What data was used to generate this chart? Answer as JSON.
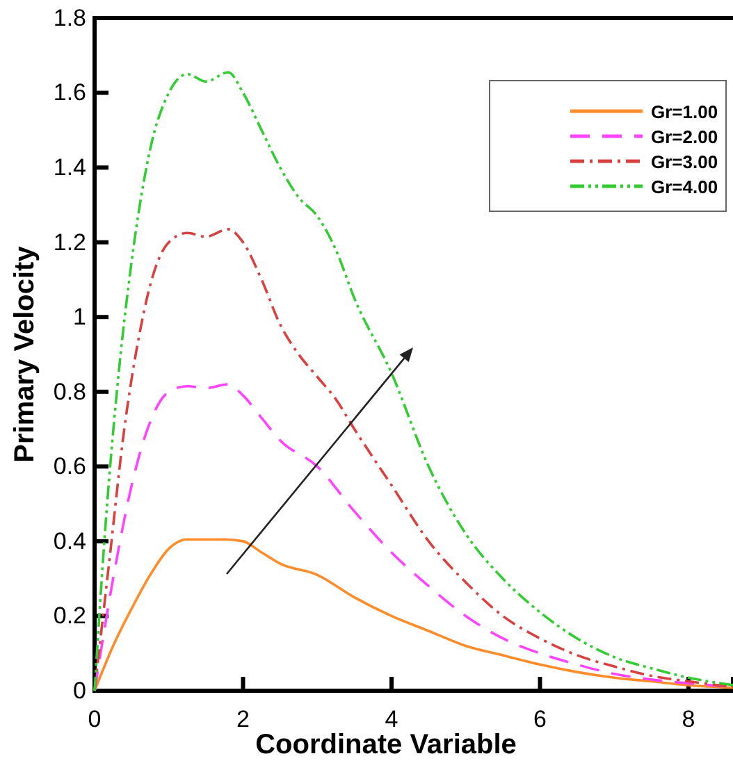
{
  "chart_data": {
    "type": "line",
    "xlabel": "Coordinate Variable",
    "ylabel": "Primary Velocity",
    "xlim": [
      0,
      8.6
    ],
    "ylim": [
      0,
      1.8
    ],
    "xticks": [
      0,
      2,
      4,
      6,
      8
    ],
    "yticks": [
      0,
      {
        "value": 0.2,
        "label": "0.2"
      },
      {
        "value": 0.4,
        "label": "0.4"
      },
      {
        "value": 0.6,
        "label": "0.6"
      },
      {
        "value": 0.8,
        "label": "0.8"
      },
      1,
      {
        "value": 1.2,
        "label": "1.2"
      },
      {
        "value": 1.4,
        "label": "1.4"
      },
      {
        "value": 1.6,
        "label": "1.6"
      },
      {
        "value": 1.8,
        "label": "1.8"
      }
    ],
    "legend": "top right",
    "grid": false,
    "marker": "none",
    "series": [
      {
        "name": "Gr=1.00",
        "color": "#ff8c2a",
        "line_style": "solid",
        "x": [
          0,
          0.25,
          0.5,
          0.75,
          1,
          1.25,
          1.5,
          1.75,
          2,
          2.25,
          2.5,
          3,
          3.5,
          4,
          4.5,
          5,
          5.5,
          6,
          6.5,
          7,
          7.5,
          8,
          8.6
        ],
        "values": [
          0,
          0.12,
          0.22,
          0.31,
          0.38,
          0.405,
          0.405,
          0.405,
          0.4,
          0.37,
          0.34,
          0.31,
          0.25,
          0.2,
          0.16,
          0.12,
          0.095,
          0.07,
          0.05,
          0.035,
          0.025,
          0.015,
          0.008
        ]
      },
      {
        "name": "Gr=2.00",
        "color": "#ff44ff",
        "line_style": "dashed",
        "x": [
          0,
          0.25,
          0.5,
          0.75,
          1,
          1.25,
          1.5,
          1.8,
          2,
          2.25,
          2.5,
          3,
          3.5,
          4,
          4.5,
          5,
          5.5,
          6,
          6.5,
          7,
          7.5,
          8,
          8.6
        ],
        "values": [
          0,
          0.3,
          0.55,
          0.72,
          0.8,
          0.815,
          0.81,
          0.82,
          0.79,
          0.73,
          0.67,
          0.6,
          0.48,
          0.37,
          0.28,
          0.2,
          0.14,
          0.1,
          0.07,
          0.045,
          0.03,
          0.02,
          0.01
        ]
      },
      {
        "name": "Gr=3.00",
        "color": "#d94040",
        "line_style": "dashdot",
        "x": [
          0,
          0.2,
          0.4,
          0.6,
          0.8,
          1,
          1.25,
          1.5,
          1.8,
          2,
          2.25,
          2.5,
          2.75,
          3,
          3.25,
          3.5,
          4,
          4.5,
          5,
          5.5,
          6,
          6.5,
          7,
          7.5,
          8,
          8.6
        ],
        "values": [
          0,
          0.35,
          0.7,
          0.95,
          1.12,
          1.2,
          1.225,
          1.215,
          1.235,
          1.2,
          1.1,
          0.98,
          0.9,
          0.84,
          0.78,
          0.7,
          0.55,
          0.4,
          0.29,
          0.2,
          0.14,
          0.095,
          0.065,
          0.04,
          0.025,
          0.01
        ]
      },
      {
        "name": "Gr=4.00",
        "color": "#33cc33",
        "line_style": "dashdotdot",
        "x": [
          0,
          0.15,
          0.3,
          0.5,
          0.75,
          1,
          1.25,
          1.5,
          1.8,
          2,
          2.25,
          2.5,
          2.75,
          3,
          3.25,
          3.5,
          4,
          4.5,
          5,
          5.5,
          6,
          6.5,
          7,
          7.5,
          8,
          8.6
        ],
        "values": [
          0,
          0.45,
          0.8,
          1.15,
          1.45,
          1.6,
          1.65,
          1.63,
          1.655,
          1.6,
          1.5,
          1.4,
          1.32,
          1.27,
          1.18,
          1.05,
          0.85,
          0.6,
          0.42,
          0.3,
          0.21,
          0.14,
          0.09,
          0.06,
          0.035,
          0.015
        ]
      }
    ]
  }
}
